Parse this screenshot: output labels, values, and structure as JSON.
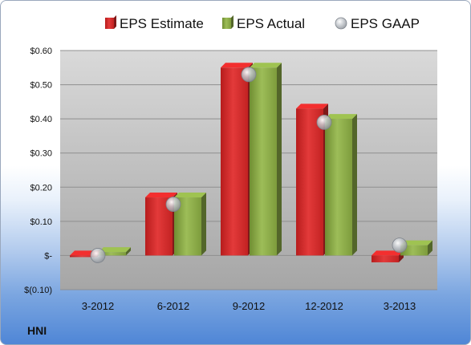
{
  "ticker": "HNI",
  "colors": {
    "estimate": "#d32929",
    "actual": "#8aaa46",
    "gaap": "#b9bdc3",
    "plot_bg_top": "#d7d7d7",
    "plot_bg_bottom": "#a9a9a9"
  },
  "chart_data": {
    "type": "bar",
    "categories": [
      "3-2012",
      "6-2012",
      "9-2012",
      "12-2012",
      "3-2013"
    ],
    "series": [
      {
        "name": "EPS Estimate",
        "values": [
          0.0,
          0.17,
          0.55,
          0.43,
          -0.02
        ],
        "kind": "bar",
        "color": "#d32929"
      },
      {
        "name": "EPS Actual",
        "values": [
          0.01,
          0.17,
          0.55,
          0.4,
          0.03
        ],
        "kind": "bar",
        "color": "#8aaa46"
      },
      {
        "name": "EPS GAAP",
        "values": [
          0.0,
          0.15,
          0.53,
          0.39,
          0.03
        ],
        "kind": "marker",
        "color": "#b9bdc3"
      }
    ],
    "yticks": [
      -0.1,
      0.0,
      0.1,
      0.2,
      0.3,
      0.4,
      0.5,
      0.6
    ],
    "ytick_labels": [
      "$(0.10)",
      "$-",
      "$0.10",
      "$0.20",
      "$0.30",
      "$0.40",
      "$0.50",
      "$0.60"
    ],
    "ylim": [
      -0.1,
      0.6
    ],
    "grid": true,
    "legend_position": "top"
  }
}
